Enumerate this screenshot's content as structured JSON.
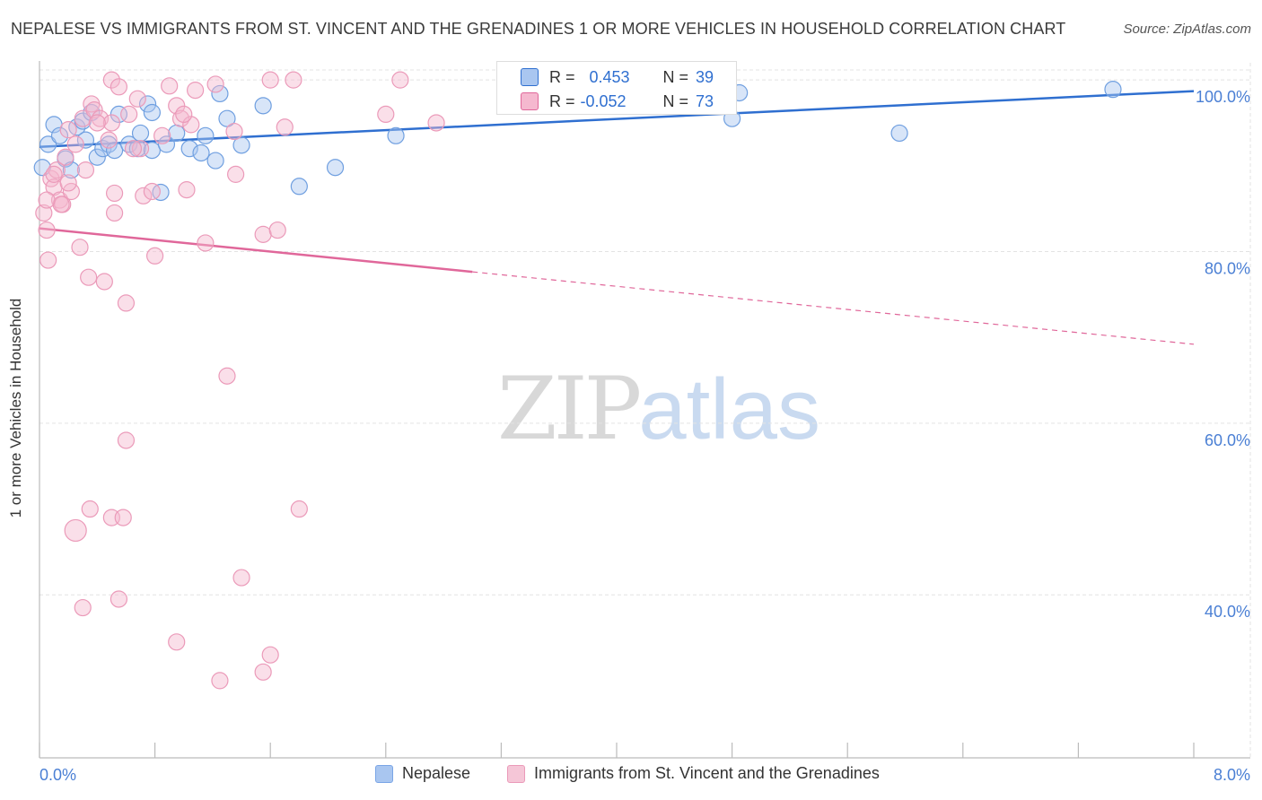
{
  "title": "NEPALESE VS IMMIGRANTS FROM ST. VINCENT AND THE GRENADINES 1 OR MORE VEHICLES IN HOUSEHOLD CORRELATION CHART",
  "source": "Source: ZipAtlas.com",
  "watermark": {
    "zip": "ZIP",
    "atlas": "atlas"
  },
  "colors": {
    "blue": "#2f6fd0",
    "pink": "#e0679a",
    "blue_fill": "#a9c6f0",
    "pink_fill": "#f5b8cf",
    "tick": "#4a7fd4"
  },
  "stats": [
    {
      "r_label": "R =",
      "r_value": "0.453",
      "n_label": "N =",
      "n_value": "39"
    },
    {
      "r_label": "R =",
      "r_value": "-0.052",
      "n_label": "N =",
      "n_value": "73"
    }
  ],
  "legend": [
    "Nepalese",
    "Immigrants from St. Vincent and the Grenadines"
  ],
  "chart_data": {
    "type": "scatter",
    "title": "NEPALESE VS IMMIGRANTS FROM ST. VINCENT AND THE GRENADINES 1 OR MORE VEHICLES IN HOUSEHOLD CORRELATION CHART",
    "xlabel": "",
    "ylabel": "1 or more Vehicles in Household",
    "xlim": [
      0,
      8
    ],
    "ylim": [
      21,
      102
    ],
    "x_tick_labels": [
      "0.0%",
      "8.0%"
    ],
    "y_ticks": [
      40,
      60,
      80,
      100
    ],
    "y_tick_labels": [
      "40.0%",
      "60.0%",
      "80.0%",
      "100.0%"
    ],
    "grid": true,
    "legend_position": "bottom",
    "series": [
      {
        "name": "Nepalese",
        "color": "#2f6fd0",
        "trend": {
          "x": [
            0.0,
            8.0
          ],
          "y": [
            92.2,
            98.7
          ],
          "dashed_from": null
        },
        "points": [
          [
            0.02,
            89.8
          ],
          [
            0.06,
            92.5
          ],
          [
            0.1,
            94.8
          ],
          [
            0.14,
            93.5
          ],
          [
            0.18,
            90.8
          ],
          [
            0.22,
            89.5
          ],
          [
            0.26,
            94.5
          ],
          [
            0.3,
            95.2
          ],
          [
            0.32,
            93.0
          ],
          [
            0.36,
            96.2
          ],
          [
            0.4,
            91.0
          ],
          [
            0.44,
            92.0
          ],
          [
            0.48,
            92.5
          ],
          [
            0.52,
            91.8
          ],
          [
            0.55,
            96.0
          ],
          [
            0.62,
            92.5
          ],
          [
            0.68,
            92.0
          ],
          [
            0.7,
            93.8
          ],
          [
            0.75,
            97.2
          ],
          [
            0.78,
            96.2
          ],
          [
            0.78,
            91.8
          ],
          [
            0.84,
            86.9
          ],
          [
            0.88,
            92.5
          ],
          [
            0.95,
            93.8
          ],
          [
            1.04,
            92.0
          ],
          [
            1.12,
            91.5
          ],
          [
            1.15,
            93.5
          ],
          [
            1.22,
            90.6
          ],
          [
            1.25,
            98.4
          ],
          [
            1.3,
            95.5
          ],
          [
            1.4,
            92.4
          ],
          [
            1.55,
            97.0
          ],
          [
            1.8,
            87.6
          ],
          [
            2.05,
            89.8
          ],
          [
            2.47,
            93.5
          ],
          [
            4.8,
            95.5
          ],
          [
            4.85,
            98.5
          ],
          [
            5.96,
            93.8
          ],
          [
            7.44,
            98.9
          ]
        ]
      },
      {
        "name": "Immigrants from St. Vincent and the Grenadines",
        "color": "#e0679a",
        "trend": {
          "x": [
            0.0,
            8.0
          ],
          "y": [
            82.7,
            69.2
          ],
          "dashed_from": 3.0
        },
        "points": [
          [
            0.03,
            84.5
          ],
          [
            0.05,
            82.5
          ],
          [
            0.06,
            79.0
          ],
          [
            0.08,
            88.5
          ],
          [
            0.1,
            87.5
          ],
          [
            0.12,
            89.5
          ],
          [
            0.14,
            86.0
          ],
          [
            0.16,
            85.5
          ],
          [
            0.18,
            91.0
          ],
          [
            0.2,
            94.2
          ],
          [
            0.22,
            87.0
          ],
          [
            0.25,
            92.5
          ],
          [
            0.28,
            80.5
          ],
          [
            0.3,
            95.5
          ],
          [
            0.32,
            89.5
          ],
          [
            0.34,
            77.0
          ],
          [
            0.36,
            97.2
          ],
          [
            0.38,
            96.5
          ],
          [
            0.42,
            95.5
          ],
          [
            0.45,
            76.5
          ],
          [
            0.48,
            93.0
          ],
          [
            0.5,
            100.0
          ],
          [
            0.5,
            95.0
          ],
          [
            0.52,
            86.8
          ],
          [
            0.52,
            84.5
          ],
          [
            0.55,
            99.2
          ],
          [
            0.6,
            74.0
          ],
          [
            0.62,
            96.0
          ],
          [
            0.68,
            97.8
          ],
          [
            0.7,
            92.0
          ],
          [
            0.72,
            86.5
          ],
          [
            0.78,
            87.0
          ],
          [
            0.8,
            79.5
          ],
          [
            0.9,
            99.3
          ],
          [
            0.95,
            97.0
          ],
          [
            0.98,
            95.5
          ],
          [
            1.02,
            87.2
          ],
          [
            1.05,
            94.8
          ],
          [
            1.08,
            98.8
          ],
          [
            1.15,
            81.0
          ],
          [
            1.22,
            99.5
          ],
          [
            1.3,
            65.5
          ],
          [
            1.35,
            94.0
          ],
          [
            1.36,
            89.0
          ],
          [
            1.4,
            42.0
          ],
          [
            1.6,
            100.0
          ],
          [
            1.55,
            82.0
          ],
          [
            1.7,
            94.5
          ],
          [
            1.76,
            100.0
          ],
          [
            2.4,
            96.0
          ],
          [
            2.5,
            100.0
          ],
          [
            2.75,
            95.0
          ],
          [
            1.65,
            82.5
          ],
          [
            0.15,
            85.5
          ],
          [
            0.25,
            47.5
          ],
          [
            0.3,
            38.5
          ],
          [
            0.35,
            50.0
          ],
          [
            0.5,
            49.0
          ],
          [
            0.55,
            39.5
          ],
          [
            0.58,
            49.0
          ],
          [
            0.6,
            58.0
          ],
          [
            0.95,
            34.5
          ],
          [
            1.25,
            30.0
          ],
          [
            1.55,
            31.0
          ],
          [
            1.6,
            33.0
          ],
          [
            1.8,
            50.0
          ],
          [
            0.1,
            89.0
          ],
          [
            0.2,
            88.0
          ],
          [
            0.4,
            95.0
          ],
          [
            0.65,
            92.0
          ],
          [
            0.85,
            93.5
          ],
          [
            1.0,
            96.0
          ],
          [
            0.05,
            86.0
          ]
        ]
      }
    ]
  }
}
